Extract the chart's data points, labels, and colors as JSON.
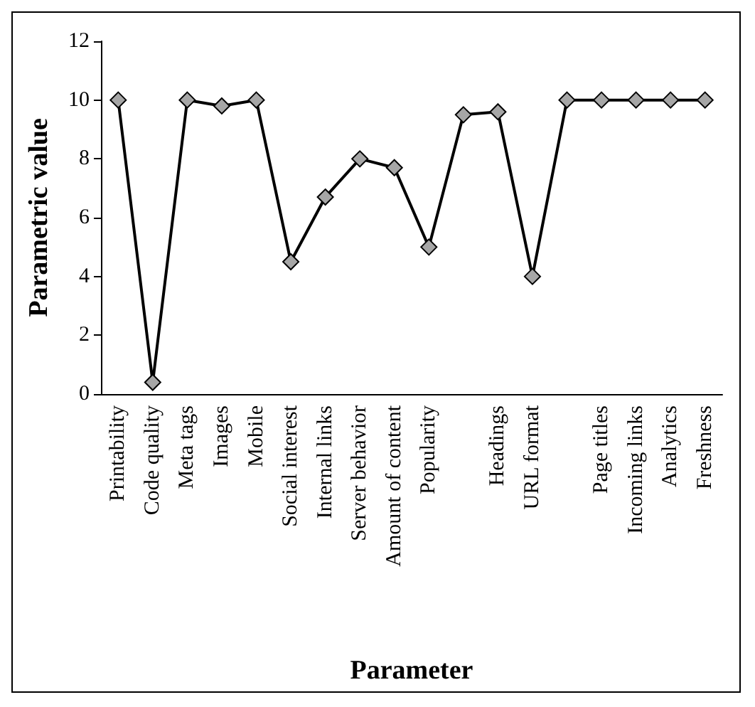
{
  "chart_data": {
    "type": "line",
    "xlabel": "Parameter",
    "ylabel": "Parametric value",
    "categories": [
      "Printability",
      "Code quality",
      "Meta tags",
      "Images",
      "Mobile",
      "Social interest",
      "Internal links",
      "Server behavior",
      "Amount of content",
      "Popularity",
      null,
      "Headings",
      "URL format",
      null,
      "Page titles",
      "Incoming links",
      "Analytics",
      "Freshness"
    ],
    "series": [
      {
        "color": "#000000",
        "values": [
          10,
          0.4,
          10,
          9.8,
          10,
          4.5,
          6.7,
          8,
          7.7,
          5,
          9.5,
          9.6,
          4,
          10,
          10,
          10,
          10,
          10
        ]
      }
    ],
    "ylim": [
      0,
      12
    ],
    "yticks": [
      0,
      2,
      4,
      6,
      8,
      10,
      12
    ],
    "grid": false,
    "marker": "diamond",
    "line_style": "solid"
  }
}
